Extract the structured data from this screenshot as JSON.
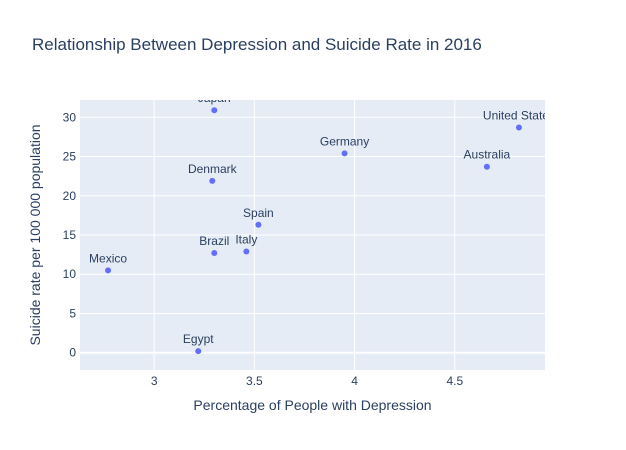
{
  "chart_data": {
    "type": "scatter",
    "title": "Relationship Between Depression and Suicide Rate in 2016",
    "xlabel": "Percentage of People with Depression",
    "ylabel": "Suicide rate per 100 000 population",
    "xlim": [
      2.63,
      4.95
    ],
    "ylim": [
      -2.2,
      32.2
    ],
    "xticks": [
      3,
      3.5,
      4,
      4.5
    ],
    "yticks": [
      0,
      5,
      10,
      15,
      20,
      25,
      30
    ],
    "xtick_labels": [
      "3",
      "3.5",
      "4",
      "4.5"
    ],
    "ytick_labels": [
      "0",
      "5",
      "10",
      "15",
      "20",
      "25",
      "30"
    ],
    "grid": true,
    "marker_color": "#636efa",
    "points": [
      {
        "label": "Japan",
        "x": 3.3,
        "y": 30.9
      },
      {
        "label": "United States",
        "x": 4.82,
        "y": 28.7
      },
      {
        "label": "Germany",
        "x": 3.95,
        "y": 25.4
      },
      {
        "label": "Australia",
        "x": 4.66,
        "y": 23.7
      },
      {
        "label": "Denmark",
        "x": 3.29,
        "y": 21.9
      },
      {
        "label": "Spain",
        "x": 3.52,
        "y": 16.3
      },
      {
        "label": "Brazil",
        "x": 3.3,
        "y": 12.7
      },
      {
        "label": "Italy",
        "x": 3.46,
        "y": 12.9
      },
      {
        "label": "Mexico",
        "x": 2.77,
        "y": 10.5
      },
      {
        "label": "Egypt",
        "x": 3.22,
        "y": 0.2
      }
    ]
  }
}
